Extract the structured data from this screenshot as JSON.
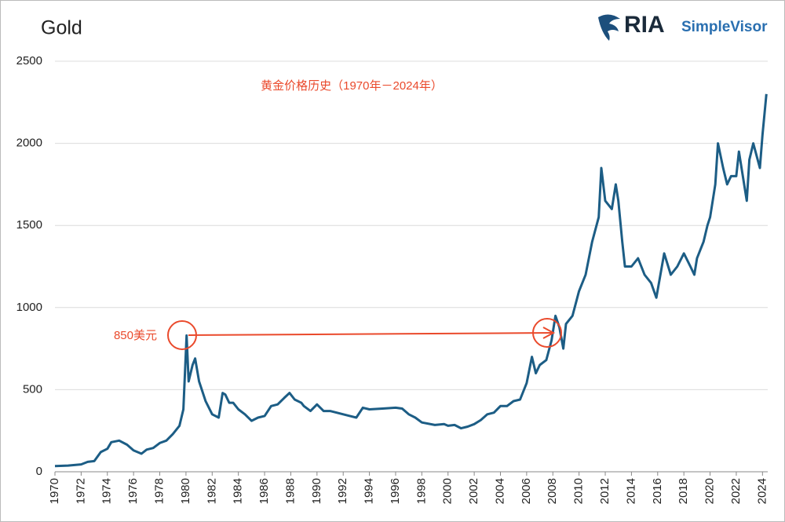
{
  "logo": {
    "name": "RIA",
    "product": "SimpleVisor"
  },
  "chart_data": {
    "type": "line",
    "title": "Gold",
    "annotations": [
      "黄金价格历史（1970年－2024年）",
      "850美元"
    ],
    "color": "#1c5d85",
    "annotation_color": "#ea4a2c",
    "grid": true,
    "xlim": [
      1970,
      2024.4
    ],
    "ylim": [
      0,
      2500
    ],
    "xticks": [
      1970,
      1972,
      1974,
      1976,
      1978,
      1980,
      1982,
      1984,
      1986,
      1988,
      1990,
      1992,
      1994,
      1996,
      1998,
      2000,
      2002,
      2004,
      2006,
      2008,
      2010,
      2012,
      2014,
      2016,
      2018,
      2020,
      2022,
      2024
    ],
    "yticks": [
      0,
      500,
      1000,
      1500,
      2000,
      2500
    ],
    "x": [
      1970,
      1971,
      1972,
      1972.5,
      1973,
      1973.5,
      1974,
      1974.3,
      1974.9,
      1975.5,
      1976,
      1976.6,
      1977,
      1977.5,
      1978,
      1978.5,
      1979,
      1979.5,
      1979.8,
      1980.05,
      1980.2,
      1980.5,
      1980.7,
      1981,
      1981.5,
      1982,
      1982.5,
      1982.8,
      1983,
      1983.3,
      1983.6,
      1984,
      1984.5,
      1985,
      1985.5,
      1986,
      1986.5,
      1987,
      1987.5,
      1987.9,
      1988.3,
      1988.8,
      1989,
      1989.5,
      1990,
      1990.5,
      1991,
      1991.5,
      1992,
      1992.5,
      1993,
      1993.5,
      1994,
      1995,
      1996,
      1996.5,
      1997,
      1997.5,
      1998,
      1999,
      1999.7,
      2000,
      2000.5,
      2001,
      2001.5,
      2002,
      2002.5,
      2003,
      2003.5,
      2004,
      2004.5,
      2005,
      2005.5,
      2006,
      2006.4,
      2006.7,
      2007,
      2007.5,
      2007.9,
      2008.2,
      2008.5,
      2008.8,
      2009,
      2009.5,
      2010,
      2010.5,
      2011,
      2011.5,
      2011.7,
      2012,
      2012.5,
      2012.8,
      2013,
      2013.3,
      2013.5,
      2014,
      2014.5,
      2015,
      2015.5,
      2015.9,
      2016.5,
      2017,
      2017.5,
      2018,
      2018.5,
      2018.8,
      2019,
      2019.5,
      2019.8,
      2020,
      2020.4,
      2020.6,
      2021,
      2021.3,
      2021.6,
      2022,
      2022.2,
      2022.8,
      2023,
      2023.3,
      2023.8,
      2024,
      2024.3
    ],
    "values": [
      35,
      38,
      45,
      60,
      65,
      120,
      140,
      180,
      190,
      165,
      130,
      110,
      135,
      145,
      175,
      190,
      230,
      280,
      380,
      830,
      550,
      650,
      690,
      550,
      430,
      350,
      330,
      480,
      470,
      420,
      420,
      380,
      350,
      310,
      330,
      340,
      400,
      410,
      450,
      480,
      440,
      420,
      400,
      370,
      410,
      370,
      370,
      360,
      350,
      340,
      330,
      390,
      380,
      385,
      390,
      385,
      350,
      330,
      300,
      285,
      290,
      280,
      285,
      265,
      275,
      290,
      315,
      350,
      360,
      400,
      400,
      430,
      440,
      540,
      700,
      600,
      650,
      680,
      800,
      950,
      880,
      750,
      900,
      950,
      1100,
      1200,
      1400,
      1550,
      1850,
      1650,
      1600,
      1750,
      1650,
      1400,
      1250,
      1250,
      1300,
      1200,
      1150,
      1060,
      1330,
      1200,
      1250,
      1330,
      1250,
      1200,
      1300,
      1400,
      1500,
      1550,
      1750,
      2000,
      1850,
      1750,
      1800,
      1800,
      1950,
      1650,
      1900,
      2000,
      1850,
      2050,
      2300
    ]
  }
}
